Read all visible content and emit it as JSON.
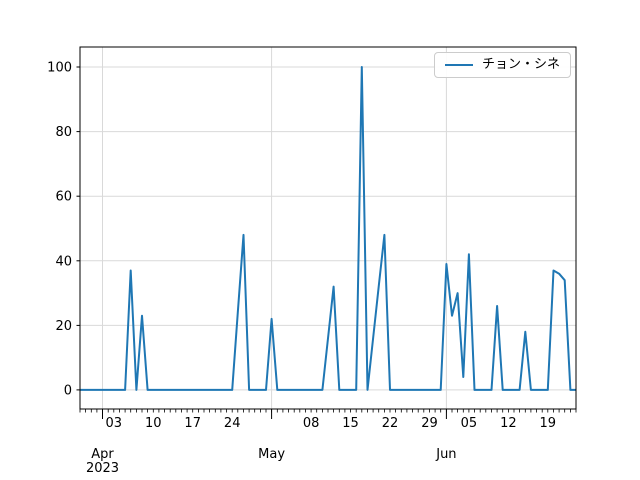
{
  "legend": {
    "label": "チョン・シネ"
  },
  "colors": {
    "line": "#1f77b4",
    "grid": "#d9d9d9",
    "spine": "#000000",
    "tick": "#000000",
    "text": "#000000",
    "legend_border": "#cccccc",
    "background": "#ffffff"
  },
  "chart_data": {
    "type": "line",
    "title": "",
    "xlabel": "",
    "ylabel": "",
    "grid": true,
    "legend_position": "upper right",
    "yticks": [
      0,
      20,
      40,
      60,
      80,
      100
    ],
    "ytick_labels": [
      "0",
      "20",
      "40",
      "60",
      "80",
      "100"
    ],
    "ylim": [
      -5.9,
      106.2
    ],
    "x_start_date": "2023-03-28",
    "x_end_date": "2023-06-24",
    "x_week_tick_labels": [
      {
        "label": "03",
        "index": 6
      },
      {
        "label": "10",
        "index": 13
      },
      {
        "label": "17",
        "index": 20
      },
      {
        "label": "24",
        "index": 27
      },
      {
        "label": "08",
        "index": 41
      },
      {
        "label": "15",
        "index": 48
      },
      {
        "label": "22",
        "index": 55
      },
      {
        "label": "29",
        "index": 62
      },
      {
        "label": "05",
        "index": 69
      },
      {
        "label": "12",
        "index": 76
      },
      {
        "label": "19",
        "index": 83
      }
    ],
    "x_month_ticks": [
      {
        "label": "Apr",
        "year": "2023",
        "index": 4
      },
      {
        "label": "May",
        "index": 34
      },
      {
        "label": "Jun",
        "index": 65
      }
    ],
    "series": [
      {
        "name": "チョン・シネ",
        "color": "#1f77b4",
        "dates": [
          "2023-03-28",
          "2023-03-29",
          "2023-03-30",
          "2023-03-31",
          "2023-04-01",
          "2023-04-02",
          "2023-04-03",
          "2023-04-04",
          "2023-04-05",
          "2023-04-06",
          "2023-04-07",
          "2023-04-08",
          "2023-04-09",
          "2023-04-10",
          "2023-04-11",
          "2023-04-12",
          "2023-04-13",
          "2023-04-14",
          "2023-04-15",
          "2023-04-16",
          "2023-04-17",
          "2023-04-18",
          "2023-04-19",
          "2023-04-20",
          "2023-04-21",
          "2023-04-22",
          "2023-04-23",
          "2023-04-24",
          "2023-04-25",
          "2023-04-26",
          "2023-04-27",
          "2023-04-28",
          "2023-04-29",
          "2023-04-30",
          "2023-05-01",
          "2023-05-02",
          "2023-05-03",
          "2023-05-04",
          "2023-05-05",
          "2023-05-06",
          "2023-05-07",
          "2023-05-08",
          "2023-05-09",
          "2023-05-10",
          "2023-05-11",
          "2023-05-12",
          "2023-05-13",
          "2023-05-14",
          "2023-05-15",
          "2023-05-16",
          "2023-05-17",
          "2023-05-18",
          "2023-05-19",
          "2023-05-20",
          "2023-05-21",
          "2023-05-22",
          "2023-05-23",
          "2023-05-24",
          "2023-05-25",
          "2023-05-26",
          "2023-05-27",
          "2023-05-28",
          "2023-05-29",
          "2023-05-30",
          "2023-05-31",
          "2023-06-01",
          "2023-06-02",
          "2023-06-03",
          "2023-06-04",
          "2023-06-05",
          "2023-06-06",
          "2023-06-07",
          "2023-06-08",
          "2023-06-09",
          "2023-06-10",
          "2023-06-11",
          "2023-06-12",
          "2023-06-13",
          "2023-06-14",
          "2023-06-15",
          "2023-06-16",
          "2023-06-17",
          "2023-06-18",
          "2023-06-19",
          "2023-06-20",
          "2023-06-21",
          "2023-06-22",
          "2023-06-23",
          "2023-06-24"
        ],
        "values": [
          0,
          0,
          0,
          0,
          0,
          0,
          0,
          0,
          0,
          37,
          0,
          23,
          0,
          0,
          0,
          0,
          0,
          0,
          0,
          0,
          0,
          0,
          0,
          0,
          0,
          0,
          0,
          0,
          24,
          48,
          0,
          0,
          0,
          0,
          22,
          0,
          0,
          0,
          0,
          0,
          0,
          0,
          0,
          0,
          16,
          32,
          0,
          0,
          0,
          0,
          100,
          0,
          16,
          32,
          48,
          0,
          0,
          0,
          0,
          0,
          0,
          0,
          0,
          0,
          0,
          39,
          23,
          30,
          4,
          42,
          0,
          0,
          0,
          0,
          26,
          0,
          0,
          0,
          0,
          18,
          0,
          0,
          0,
          0,
          37,
          36,
          34,
          0,
          0
        ]
      }
    ]
  }
}
